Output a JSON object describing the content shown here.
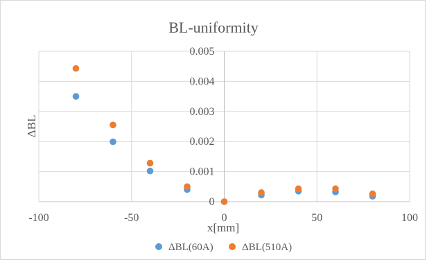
{
  "chart_data": {
    "type": "scatter",
    "title": "BL-uniformity",
    "xlabel": "x[mm]",
    "ylabel": "ΔBL",
    "xlim": [
      -100,
      100
    ],
    "ylim": [
      0,
      0.005
    ],
    "x_ticks": [
      -100,
      -50,
      0,
      50,
      100
    ],
    "y_ticks": [
      0,
      0.001,
      0.002,
      0.003,
      0.004,
      0.005
    ],
    "x_tick_labels": [
      "-100",
      "-50",
      "0",
      "50",
      "100"
    ],
    "y_tick_labels": [
      "0",
      "0.001",
      "0.002",
      "0.003",
      "0.004",
      "0.005"
    ],
    "grid": true,
    "legend": "bottom",
    "series": [
      {
        "name": "ΔBL(60A)",
        "color": "#5b9bd5",
        "points": [
          {
            "x": -80,
            "y": 0.0035
          },
          {
            "x": -60,
            "y": 0.00199
          },
          {
            "x": -40,
            "y": 0.00102
          },
          {
            "x": -20,
            "y": 0.0004
          },
          {
            "x": 0,
            "y": 0.0
          },
          {
            "x": 20,
            "y": 0.00022
          },
          {
            "x": 40,
            "y": 0.00035
          },
          {
            "x": 60,
            "y": 0.00032
          },
          {
            "x": 80,
            "y": 0.00018
          }
        ]
      },
      {
        "name": "ΔBL(510A)",
        "color": "#ed7d31",
        "points": [
          {
            "x": -80,
            "y": 0.00443
          },
          {
            "x": -60,
            "y": 0.00255
          },
          {
            "x": -40,
            "y": 0.00128
          },
          {
            "x": -20,
            "y": 0.0005
          },
          {
            "x": 0,
            "y": 0.0
          },
          {
            "x": 20,
            "y": 0.0003
          },
          {
            "x": 40,
            "y": 0.00043
          },
          {
            "x": 60,
            "y": 0.00043
          },
          {
            "x": 80,
            "y": 0.00026
          }
        ]
      }
    ]
  }
}
